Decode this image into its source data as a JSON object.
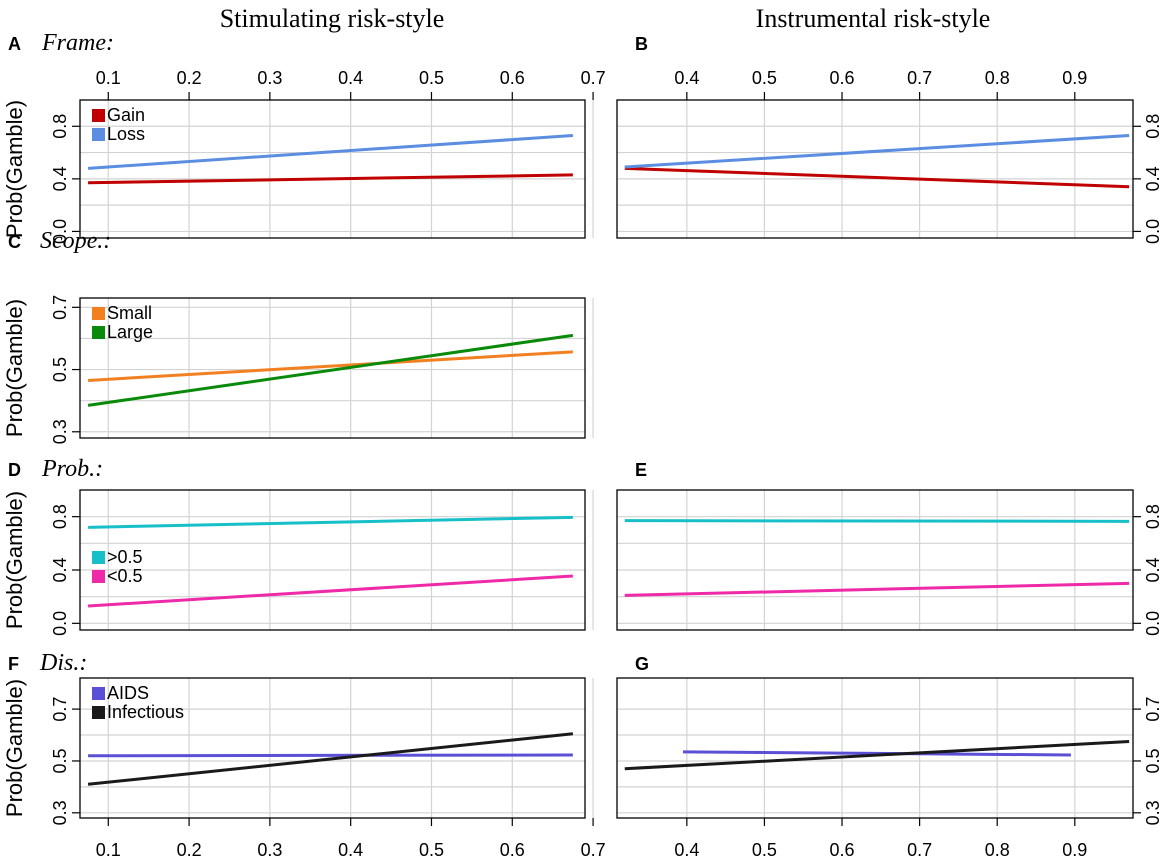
{
  "column_titles": [
    "Stimulating risk-style",
    "Instrumental risk-style"
  ],
  "y_axis_label": "Prob(Gamble)",
  "chart_data": [
    {
      "id": "A",
      "letter": "A",
      "factor": "Frame:",
      "type": "line",
      "xlim": [
        0.065,
        0.69
      ],
      "xticks": [
        0.1,
        0.2,
        0.3,
        0.4,
        0.5,
        0.6,
        0.7
      ],
      "ylim": [
        -0.05,
        1.0
      ],
      "yticks": [
        0.0,
        0.4,
        0.8
      ],
      "ygrid": [
        0.0,
        0.2,
        0.4,
        0.6,
        0.8
      ],
      "xaxis_side": "top",
      "yaxis_side": "left",
      "legend_position": "top-left",
      "series": [
        {
          "name": "Gain",
          "color": "#c00000",
          "x": [
            0.075,
            0.675
          ],
          "y": [
            0.37,
            0.43
          ]
        },
        {
          "name": "Loss",
          "color": "#5b8de0",
          "x": [
            0.075,
            0.675
          ],
          "y": [
            0.48,
            0.73
          ]
        }
      ]
    },
    {
      "id": "B",
      "letter": "B",
      "factor": "",
      "type": "line",
      "xlim": [
        0.31,
        0.975
      ],
      "xticks": [
        0.4,
        0.5,
        0.6,
        0.7,
        0.8,
        0.9
      ],
      "ylim": [
        -0.05,
        1.0
      ],
      "yticks": [
        0.0,
        0.4,
        0.8
      ],
      "ygrid": [
        0.0,
        0.2,
        0.4,
        0.6,
        0.8
      ],
      "xaxis_side": "top",
      "yaxis_side": "right",
      "legend_position": "none",
      "series": [
        {
          "name": "Gain",
          "color": "#c00000",
          "x": [
            0.32,
            0.97
          ],
          "y": [
            0.48,
            0.34
          ]
        },
        {
          "name": "Loss",
          "color": "#5b8de0",
          "x": [
            0.32,
            0.97
          ],
          "y": [
            0.49,
            0.73
          ]
        }
      ]
    },
    {
      "id": "C",
      "letter": "C",
      "factor": "Scope.:",
      "type": "line",
      "xlim": [
        0.065,
        0.69
      ],
      "xticks": [
        0.1,
        0.2,
        0.3,
        0.4,
        0.5,
        0.6,
        0.7
      ],
      "ylim": [
        0.28,
        0.73
      ],
      "yticks": [
        0.3,
        0.5,
        0.7
      ],
      "ygrid": [
        0.3,
        0.4,
        0.5,
        0.6,
        0.7
      ],
      "xaxis_side": "none",
      "yaxis_side": "left",
      "legend_position": "top-left",
      "series": [
        {
          "name": "Small",
          "color": "#f28021",
          "x": [
            0.075,
            0.675
          ],
          "y": [
            0.465,
            0.557
          ]
        },
        {
          "name": "Large",
          "color": "#0a8a0a",
          "x": [
            0.075,
            0.675
          ],
          "y": [
            0.385,
            0.61
          ]
        }
      ]
    },
    {
      "id": "D",
      "letter": "D",
      "factor": "Prob.:",
      "type": "line",
      "xlim": [
        0.065,
        0.69
      ],
      "xticks": [
        0.1,
        0.2,
        0.3,
        0.4,
        0.5,
        0.6,
        0.7
      ],
      "ylim": [
        -0.05,
        1.0
      ],
      "yticks": [
        0.0,
        0.4,
        0.8
      ],
      "ygrid": [
        0.0,
        0.2,
        0.4,
        0.6,
        0.8
      ],
      "xaxis_side": "none",
      "yaxis_side": "left",
      "legend_position": "middle-left",
      "series": [
        {
          "name": ">0.5",
          "color": "#17bfc9",
          "x": [
            0.075,
            0.675
          ],
          "y": [
            0.72,
            0.795
          ]
        },
        {
          "name": "<0.5",
          "color": "#ef2aa9",
          "x": [
            0.075,
            0.675
          ],
          "y": [
            0.13,
            0.355
          ]
        }
      ]
    },
    {
      "id": "E",
      "letter": "E",
      "factor": "",
      "type": "line",
      "xlim": [
        0.31,
        0.975
      ],
      "xticks": [
        0.4,
        0.5,
        0.6,
        0.7,
        0.8,
        0.9
      ],
      "ylim": [
        -0.05,
        1.0
      ],
      "yticks": [
        0.0,
        0.4,
        0.8
      ],
      "ygrid": [
        0.0,
        0.2,
        0.4,
        0.6,
        0.8
      ],
      "xaxis_side": "none",
      "yaxis_side": "right",
      "legend_position": "none",
      "series": [
        {
          "name": ">0.5",
          "color": "#17bfc9",
          "x": [
            0.32,
            0.97
          ],
          "y": [
            0.77,
            0.765
          ]
        },
        {
          "name": "<0.5",
          "color": "#ef2aa9",
          "x": [
            0.32,
            0.97
          ],
          "y": [
            0.21,
            0.3
          ]
        }
      ]
    },
    {
      "id": "F",
      "letter": "F",
      "factor": "Dis.:",
      "type": "line",
      "xlim": [
        0.065,
        0.69
      ],
      "xticks": [
        0.1,
        0.2,
        0.3,
        0.4,
        0.5,
        0.6,
        0.7
      ],
      "ylim": [
        0.28,
        0.82
      ],
      "yticks": [
        0.3,
        0.5,
        0.7
      ],
      "ygrid": [
        0.3,
        0.4,
        0.5,
        0.6,
        0.7
      ],
      "xaxis_side": "bottom",
      "yaxis_side": "left",
      "legend_position": "top-left",
      "series": [
        {
          "name": "AIDS",
          "color": "#5b4fd6",
          "x": [
            0.075,
            0.675
          ],
          "y": [
            0.52,
            0.523
          ]
        },
        {
          "name": "Infectious",
          "color": "#1a1a1a",
          "x": [
            0.075,
            0.675
          ],
          "y": [
            0.41,
            0.605
          ]
        }
      ]
    },
    {
      "id": "G",
      "letter": "G",
      "factor": "",
      "type": "line",
      "xlim": [
        0.31,
        0.975
      ],
      "xticks": [
        0.4,
        0.5,
        0.6,
        0.7,
        0.8,
        0.9
      ],
      "ylim": [
        0.28,
        0.82
      ],
      "yticks": [
        0.3,
        0.5,
        0.7
      ],
      "ygrid": [
        0.3,
        0.4,
        0.5,
        0.6,
        0.7
      ],
      "xaxis_side": "bottom",
      "yaxis_side": "right",
      "legend_position": "none",
      "series": [
        {
          "name": "AIDS",
          "color": "#5b4fd6",
          "x": [
            0.395,
            0.895
          ],
          "y": [
            0.535,
            0.523
          ]
        },
        {
          "name": "Infectious",
          "color": "#1a1a1a",
          "x": [
            0.32,
            0.97
          ],
          "y": [
            0.47,
            0.575
          ]
        }
      ]
    }
  ]
}
